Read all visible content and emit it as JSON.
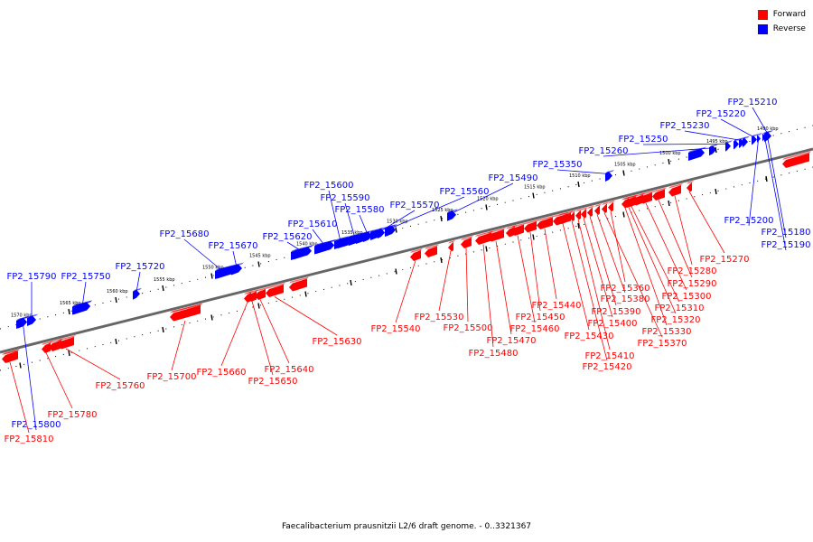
{
  "legend": {
    "forward": {
      "label": "Forward",
      "color": "#ff0000"
    },
    "reverse": {
      "label": "Reverse",
      "color": "#0000ff"
    }
  },
  "caption": "Faecalibacterium prausnitzii L2/6 draft genome. - 0..3321367",
  "scale_labels": [
    "1490 kbp",
    "1495 kbp",
    "1500 kbp",
    "1505 kbp",
    "1510 kbp",
    "1515 kbp",
    "1520 kbp",
    "1525 kbp",
    "1530 kbp",
    "1535 kbp",
    "1540 kbp",
    "1545 kbp",
    "1550 kbp",
    "1555 kbp",
    "1560 kbp",
    "1565 kbp",
    "1570 kbp"
  ],
  "reverse_genes": [
    "FP2_15180",
    "FP2_15190",
    "FP2_15200",
    "FP2_15210",
    "FP2_15220",
    "FP2_15230",
    "FP2_15250",
    "FP2_15260",
    "FP2_15350",
    "FP2_15490",
    "FP2_15560",
    "FP2_15570",
    "FP2_15580",
    "FP2_15590",
    "FP2_15600",
    "FP2_15610",
    "FP2_15620",
    "FP2_15670",
    "FP2_15680",
    "FP2_15720",
    "FP2_15750",
    "FP2_15790",
    "FP2_15800"
  ],
  "forward_genes": [
    "FP2_15270",
    "FP2_15280",
    "FP2_15290",
    "FP2_15300",
    "FP2_15310",
    "FP2_15320",
    "FP2_15330",
    "FP2_15360",
    "FP2_15370",
    "FP2_15380",
    "FP2_15390",
    "FP2_15400",
    "FP2_15410",
    "FP2_15420",
    "FP2_15430",
    "FP2_15440",
    "FP2_15450",
    "FP2_15460",
    "FP2_15470",
    "FP2_15480",
    "FP2_15500",
    "FP2_15530",
    "FP2_15540",
    "FP2_15630",
    "FP2_15640",
    "FP2_15650",
    "FP2_15660",
    "FP2_15700",
    "FP2_15760",
    "FP2_15780",
    "FP2_15810"
  ]
}
